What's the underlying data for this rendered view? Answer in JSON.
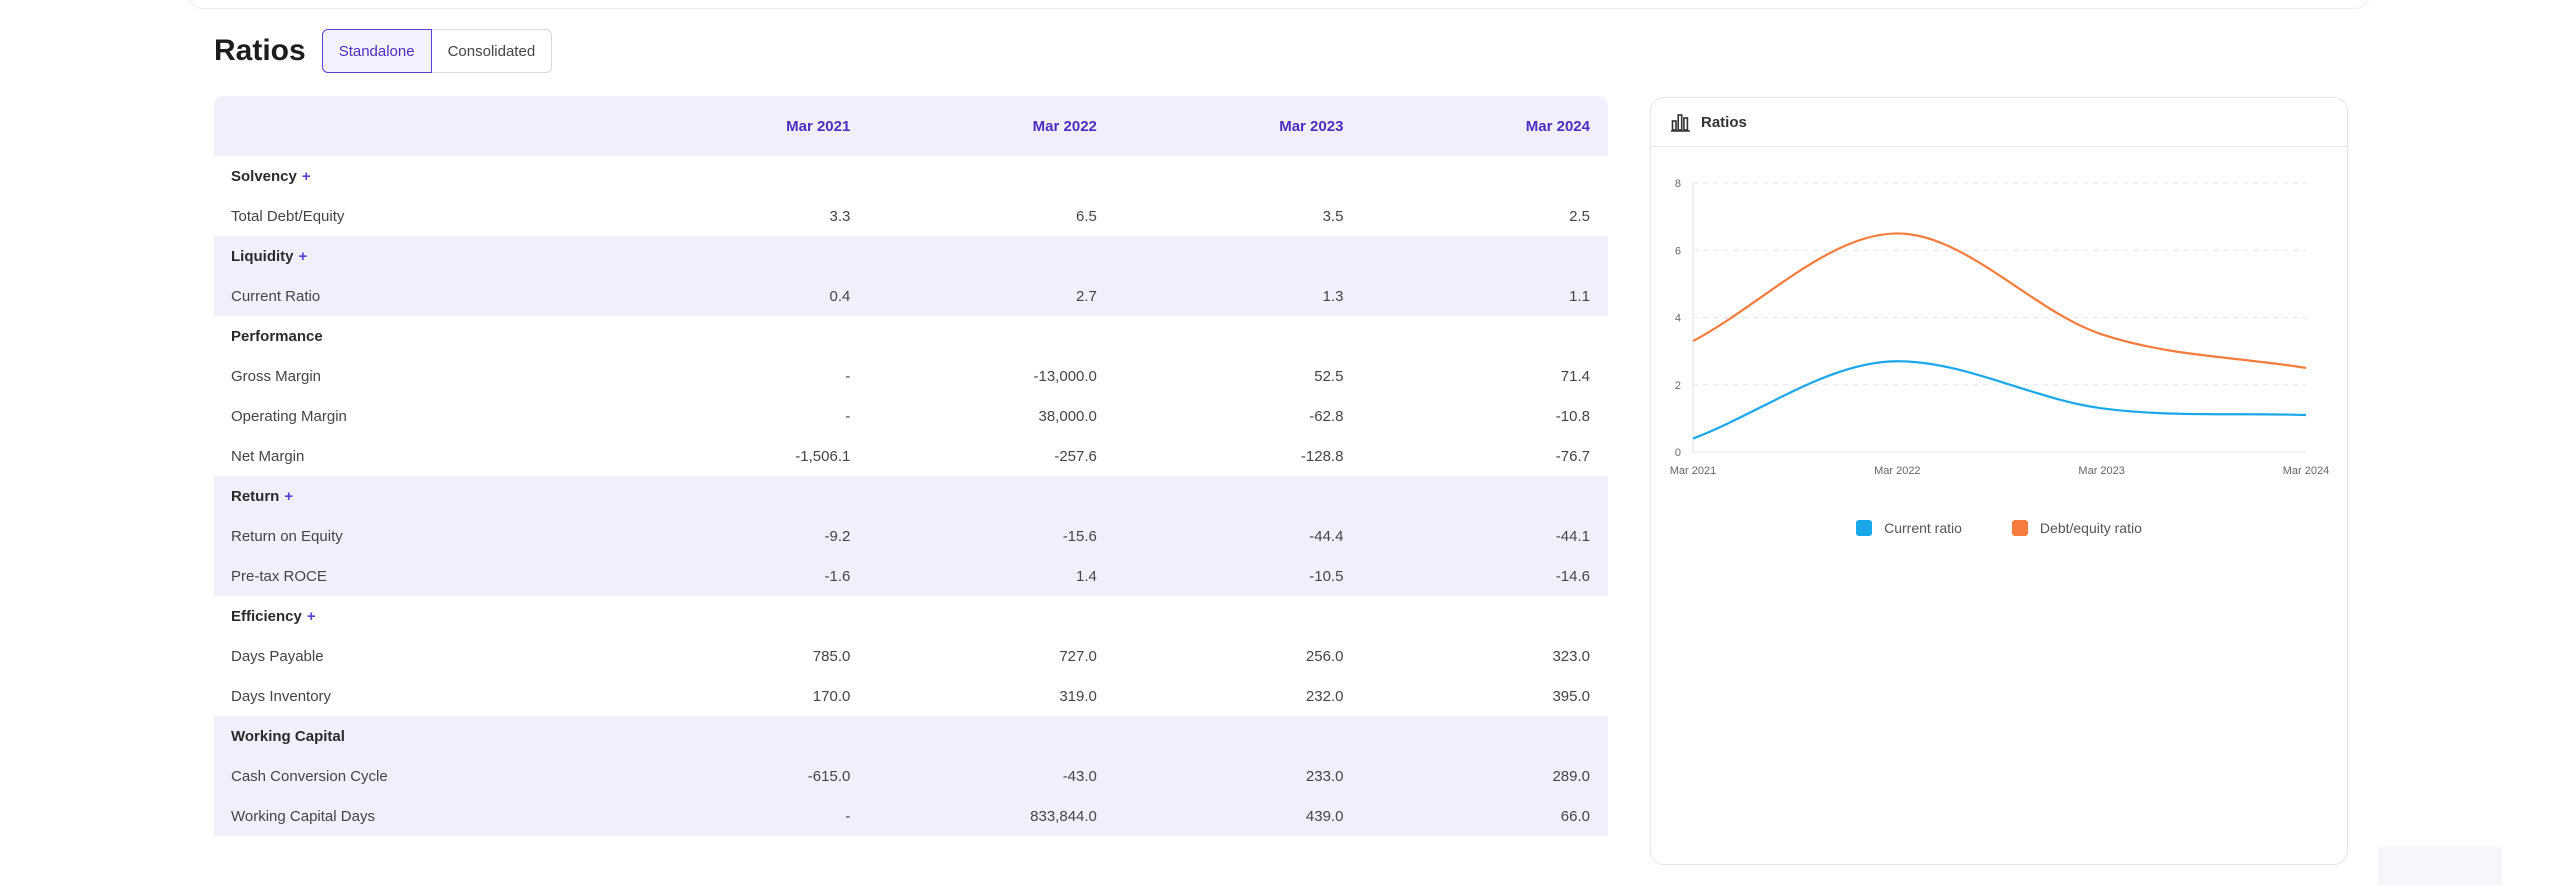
{
  "title": "Ratios",
  "toggle": {
    "standalone": "Standalone",
    "consolidated": "Consolidated"
  },
  "table": {
    "columns": [
      "Mar 2021",
      "Mar 2022",
      "Mar 2023",
      "Mar 2024"
    ],
    "groups": [
      {
        "name": "Solvency",
        "expandable": true,
        "shaded": false,
        "rows": [
          {
            "label": "Total Debt/Equity",
            "values": [
              "3.3",
              "6.5",
              "3.5",
              "2.5"
            ]
          }
        ]
      },
      {
        "name": "Liquidity",
        "expandable": true,
        "shaded": true,
        "rows": [
          {
            "label": "Current Ratio",
            "values": [
              "0.4",
              "2.7",
              "1.3",
              "1.1"
            ]
          }
        ]
      },
      {
        "name": "Performance",
        "expandable": false,
        "shaded": false,
        "rows": [
          {
            "label": "Gross Margin",
            "values": [
              "-",
              "-13,000.0",
              "52.5",
              "71.4"
            ]
          },
          {
            "label": "Operating Margin",
            "values": [
              "-",
              "38,000.0",
              "-62.8",
              "-10.8"
            ]
          },
          {
            "label": "Net Margin",
            "values": [
              "-1,506.1",
              "-257.6",
              "-128.8",
              "-76.7"
            ]
          }
        ]
      },
      {
        "name": "Return",
        "expandable": true,
        "shaded": true,
        "rows": [
          {
            "label": "Return on Equity",
            "values": [
              "-9.2",
              "-15.6",
              "-44.4",
              "-44.1"
            ]
          },
          {
            "label": "Pre-tax ROCE",
            "values": [
              "-1.6",
              "1.4",
              "-10.5",
              "-14.6"
            ]
          }
        ]
      },
      {
        "name": "Efficiency",
        "expandable": true,
        "shaded": false,
        "rows": [
          {
            "label": "Days Payable",
            "values": [
              "785.0",
              "727.0",
              "256.0",
              "323.0"
            ]
          },
          {
            "label": "Days Inventory",
            "values": [
              "170.0",
              "319.0",
              "232.0",
              "395.0"
            ]
          }
        ]
      },
      {
        "name": "Working Capital",
        "expandable": false,
        "shaded": true,
        "rows": [
          {
            "label": "Cash Conversion Cycle",
            "values": [
              "-615.0",
              "-43.0",
              "233.0",
              "289.0"
            ]
          },
          {
            "label": "Working Capital Days",
            "values": [
              "-",
              "833,844.0",
              "439.0",
              "66.0"
            ]
          }
        ]
      }
    ]
  },
  "chart_card": {
    "title": "Ratios",
    "icon": "bar-chart-icon"
  },
  "chart_data": {
    "type": "line",
    "x": [
      "Mar 2021",
      "Mar 2022",
      "Mar 2023",
      "Mar 2024"
    ],
    "ylim": [
      0,
      8
    ],
    "yticks": [
      "0",
      "2",
      "4",
      "6",
      "8"
    ],
    "grid": true,
    "legend": "bottom",
    "series": [
      {
        "name": "Current ratio",
        "values": [
          0.4,
          2.7,
          1.3,
          1.1
        ],
        "color": "#1aa7ec"
      },
      {
        "name": "Debt/equity ratio",
        "values": [
          3.3,
          6.5,
          3.5,
          2.5
        ],
        "color": "#f47c3c"
      }
    ]
  },
  "colors": {
    "accent": "#5b3fd0",
    "shade": "#f1effb"
  }
}
